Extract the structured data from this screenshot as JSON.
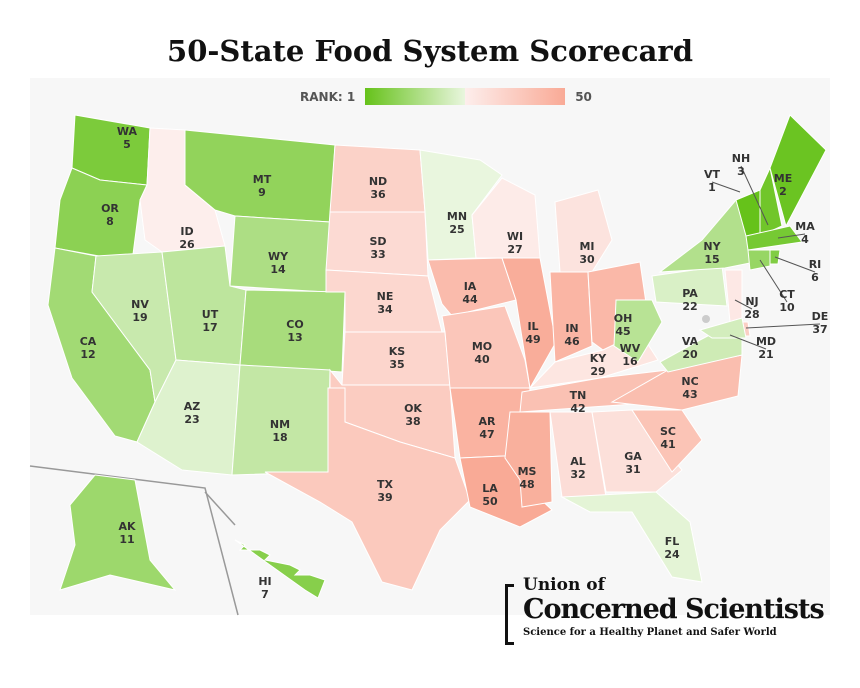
{
  "title": "50-State Food System Scorecard",
  "legend": {
    "min_label": "RANK: 1",
    "max_label": "50",
    "colors": {
      "best": "#66c21a",
      "mid_green": "#e9f6de",
      "mid_red": "#fdeeec",
      "worst": "#f9aa96"
    }
  },
  "logo": {
    "line1": "Union of",
    "line2": "Concerned Scientists",
    "tagline": "Science for a Healthy Planet and Safer World"
  },
  "states": [
    {
      "abbr": "WA",
      "rank": 5
    },
    {
      "abbr": "OR",
      "rank": 8
    },
    {
      "abbr": "CA",
      "rank": 12
    },
    {
      "abbr": "ID",
      "rank": 26
    },
    {
      "abbr": "NV",
      "rank": 19
    },
    {
      "abbr": "MT",
      "rank": 9
    },
    {
      "abbr": "WY",
      "rank": 14
    },
    {
      "abbr": "UT",
      "rank": 17
    },
    {
      "abbr": "AZ",
      "rank": 23
    },
    {
      "abbr": "CO",
      "rank": 13
    },
    {
      "abbr": "NM",
      "rank": 18
    },
    {
      "abbr": "ND",
      "rank": 36
    },
    {
      "abbr": "SD",
      "rank": 33
    },
    {
      "abbr": "NE",
      "rank": 34
    },
    {
      "abbr": "KS",
      "rank": 35
    },
    {
      "abbr": "OK",
      "rank": 38
    },
    {
      "abbr": "TX",
      "rank": 39
    },
    {
      "abbr": "MN",
      "rank": 25
    },
    {
      "abbr": "IA",
      "rank": 44
    },
    {
      "abbr": "MO",
      "rank": 40
    },
    {
      "abbr": "AR",
      "rank": 47
    },
    {
      "abbr": "LA",
      "rank": 50
    },
    {
      "abbr": "WI",
      "rank": 27
    },
    {
      "abbr": "IL",
      "rank": 49
    },
    {
      "abbr": "MI",
      "rank": 30
    },
    {
      "abbr": "IN",
      "rank": 46
    },
    {
      "abbr": "OH",
      "rank": 45
    },
    {
      "abbr": "KY",
      "rank": 29
    },
    {
      "abbr": "TN",
      "rank": 42
    },
    {
      "abbr": "MS",
      "rank": 48
    },
    {
      "abbr": "AL",
      "rank": 32
    },
    {
      "abbr": "GA",
      "rank": 31
    },
    {
      "abbr": "FL",
      "rank": 24
    },
    {
      "abbr": "SC",
      "rank": 41
    },
    {
      "abbr": "NC",
      "rank": 43
    },
    {
      "abbr": "VA",
      "rank": 20
    },
    {
      "abbr": "WV",
      "rank": 16
    },
    {
      "abbr": "PA",
      "rank": 22
    },
    {
      "abbr": "NY",
      "rank": 15
    },
    {
      "abbr": "NJ",
      "rank": 28
    },
    {
      "abbr": "DE",
      "rank": 37
    },
    {
      "abbr": "MD",
      "rank": 21
    },
    {
      "abbr": "VT",
      "rank": 1
    },
    {
      "abbr": "NH",
      "rank": 3
    },
    {
      "abbr": "ME",
      "rank": 2
    },
    {
      "abbr": "MA",
      "rank": 4
    },
    {
      "abbr": "CT",
      "rank": 10
    },
    {
      "abbr": "RI",
      "rank": 6
    },
    {
      "abbr": "AK",
      "rank": 11
    },
    {
      "abbr": "HI",
      "rank": 7
    }
  ]
}
